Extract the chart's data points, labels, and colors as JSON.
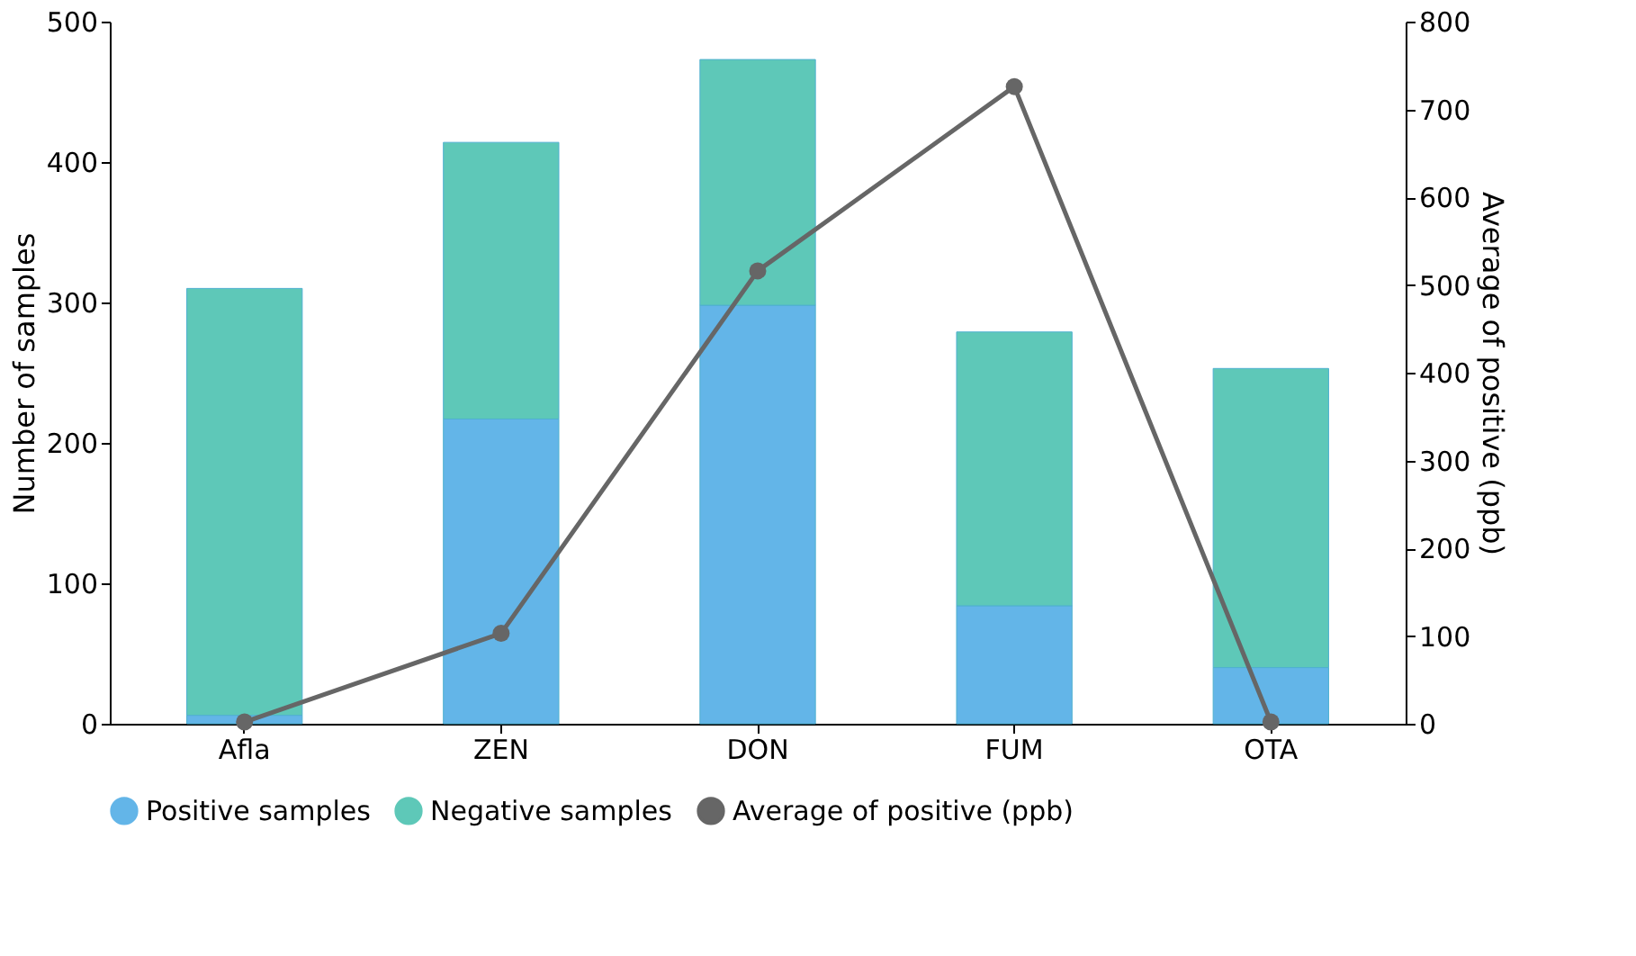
{
  "chart_data": {
    "type": "bar",
    "stacked": true,
    "categories": [
      "Afla",
      "ZEN",
      "DON",
      "FUM",
      "OTA"
    ],
    "series": [
      {
        "name": "Positive samples",
        "color": "#63b5e8",
        "values": [
          6,
          217,
          298,
          84,
          40
        ]
      },
      {
        "name": "Negative samples",
        "color": "#5ec8b8",
        "values": [
          304,
          197,
          175,
          195,
          213
        ]
      },
      {
        "name": "Average of positive (ppb)",
        "color": "#666666",
        "type": "line",
        "axis": "y2",
        "values": [
          2,
          103,
          516,
          726,
          2
        ]
      }
    ],
    "ylabel": "Number of samples",
    "y2label": "Average of positive (ppb)",
    "ylim": [
      0,
      500
    ],
    "yticks": [
      0,
      100,
      200,
      300,
      400,
      500
    ],
    "y2lim": [
      0,
      800
    ],
    "y2ticks": [
      0,
      100,
      200,
      300,
      400,
      500,
      600,
      700,
      800
    ],
    "legend": "bottom",
    "grid": false,
    "marker": "circle",
    "line_style": "solid"
  }
}
